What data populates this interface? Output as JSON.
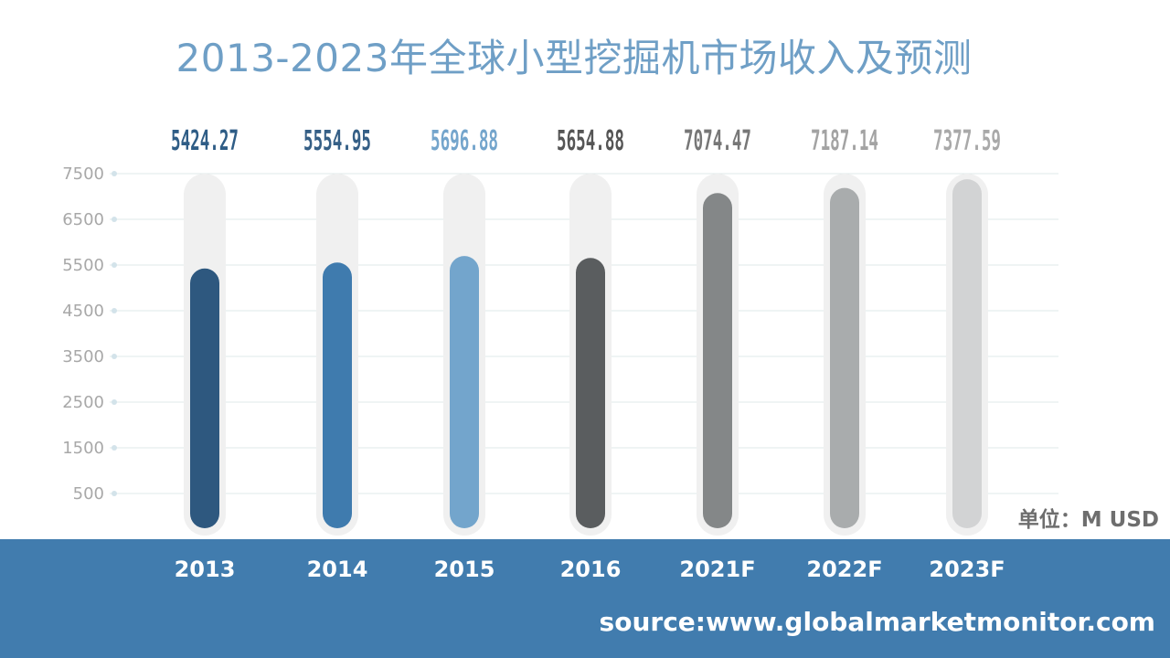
{
  "chart_data": {
    "type": "bar",
    "title": "2013-2023年全球小型挖掘机市场收入及预测",
    "categories": [
      "2013",
      "2014",
      "2015",
      "2016",
      "2021F",
      "2022F",
      "2023F"
    ],
    "values": [
      5424.27,
      5554.95,
      5696.88,
      5654.88,
      7074.47,
      7187.14,
      7377.59
    ],
    "value_labels": [
      "5424.27",
      "5554.95",
      "5696.88",
      "5654.88",
      "7074.47",
      "7187.14",
      "7377.59"
    ],
    "y_ticks": [
      "500",
      "1500",
      "2500",
      "3500",
      "4500",
      "5500",
      "6500",
      "7500"
    ],
    "unit_label": "单位：M USD",
    "grid": true,
    "colors": [
      "#2e587f",
      "#3f7bae",
      "#73a5cc",
      "#5a5d5f",
      "#848788",
      "#a9acad",
      "#d2d3d4"
    ],
    "label_colors": [
      "#2f5d86",
      "#355f86",
      "#74a5cc",
      "#555555",
      "#777777",
      "#a3a3a3",
      "#a9a9a9"
    ]
  },
  "footer": {
    "source": "source:www.globalmarketmonitor.com"
  }
}
